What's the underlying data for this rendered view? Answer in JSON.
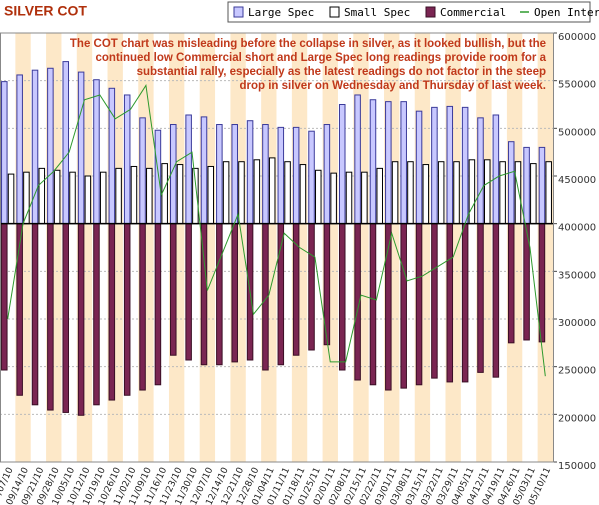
{
  "chart_data": {
    "type": "bar",
    "title": "SILVER COT",
    "annotation": [
      "The COT chart was misleading before the collapse in silver, as it looked bullish, but the",
      "continued low Commercial short and Large Spec long readings provide room for a",
      "substantial rally, especially as the latest readings do not factor in the steep",
      "drop in silver on Wednesday and Thursday of last week."
    ],
    "categories": [
      "09/07/10",
      "09/14/10",
      "09/21/10",
      "09/28/10",
      "10/05/10",
      "10/12/10",
      "10/19/10",
      "10/26/10",
      "11/02/10",
      "11/09/10",
      "11/16/10",
      "11/23/10",
      "11/30/10",
      "12/07/10",
      "12/14/10",
      "12/21/10",
      "12/28/10",
      "01/04/11",
      "01/11/11",
      "01/18/11",
      "01/25/11",
      "02/01/11",
      "02/08/11",
      "02/15/11",
      "02/22/11",
      "03/01/11",
      "03/08/11",
      "03/15/11",
      "03/22/11",
      "03/29/11",
      "04/05/11",
      "04/12/11",
      "04/19/11",
      "04/26/11",
      "05/03/11",
      "05/10/11"
    ],
    "series": [
      {
        "name": "Large Spec",
        "type": "bar",
        "color": "#c8c8ff",
        "stroke": "#3a3a9a",
        "values": [
          549000,
          556000,
          561000,
          563000,
          570000,
          559000,
          551000,
          542000,
          535000,
          511000,
          498000,
          504000,
          514000,
          512000,
          504000,
          504000,
          508000,
          504000,
          501000,
          501000,
          497000,
          504000,
          525000,
          535000,
          530000,
          528000,
          528000,
          518000,
          522000,
          523000,
          522000,
          511000,
          514000,
          486000,
          480000,
          480000
        ]
      },
      {
        "name": "Small Spec",
        "type": "bar",
        "color": "#ffffff",
        "stroke": "#000000",
        "values": [
          452000,
          454000,
          458000,
          456000,
          454000,
          450000,
          454000,
          458000,
          460000,
          458000,
          463000,
          462000,
          458000,
          460000,
          465000,
          465000,
          467000,
          469000,
          465000,
          462000,
          456000,
          453000,
          454000,
          454000,
          458000,
          465000,
          465000,
          462000,
          465000,
          465000,
          467000,
          467000,
          465000,
          465000,
          463000,
          465000
        ]
      },
      {
        "name": "Commercial",
        "type": "bar",
        "color": "#7a2552",
        "stroke": "#3a0f25",
        "values": [
          246500,
          220000,
          210000,
          204500,
          202000,
          199000,
          210000,
          215000,
          220000,
          225500,
          231000,
          262000,
          257000,
          252000,
          252000,
          255000,
          257000,
          246500,
          252000,
          262000,
          267500,
          273000,
          246500,
          236000,
          231000,
          225500,
          227500,
          231000,
          238000,
          234000,
          234000,
          244000,
          239000,
          275000,
          278000,
          276000
        ]
      },
      {
        "name": "Open Interest",
        "type": "line",
        "color": "#2e9a2e",
        "values": [
          300000,
          400000,
          440000,
          455000,
          475000,
          530000,
          535000,
          510000,
          520000,
          545000,
          430000,
          465000,
          475000,
          330000,
          370000,
          410000,
          305000,
          325000,
          390000,
          375000,
          365000,
          255000,
          255000,
          325000,
          320000,
          390000,
          340000,
          345000,
          355000,
          365000,
          410000,
          440000,
          450000,
          455000,
          375000,
          240000
        ]
      }
    ],
    "bar_base": 400000,
    "ylim": [
      150000,
      600000
    ],
    "yticks": [
      150000,
      200000,
      250000,
      300000,
      350000,
      400000,
      450000,
      500000,
      550000,
      600000
    ],
    "grid": true,
    "legend": "top-right"
  }
}
